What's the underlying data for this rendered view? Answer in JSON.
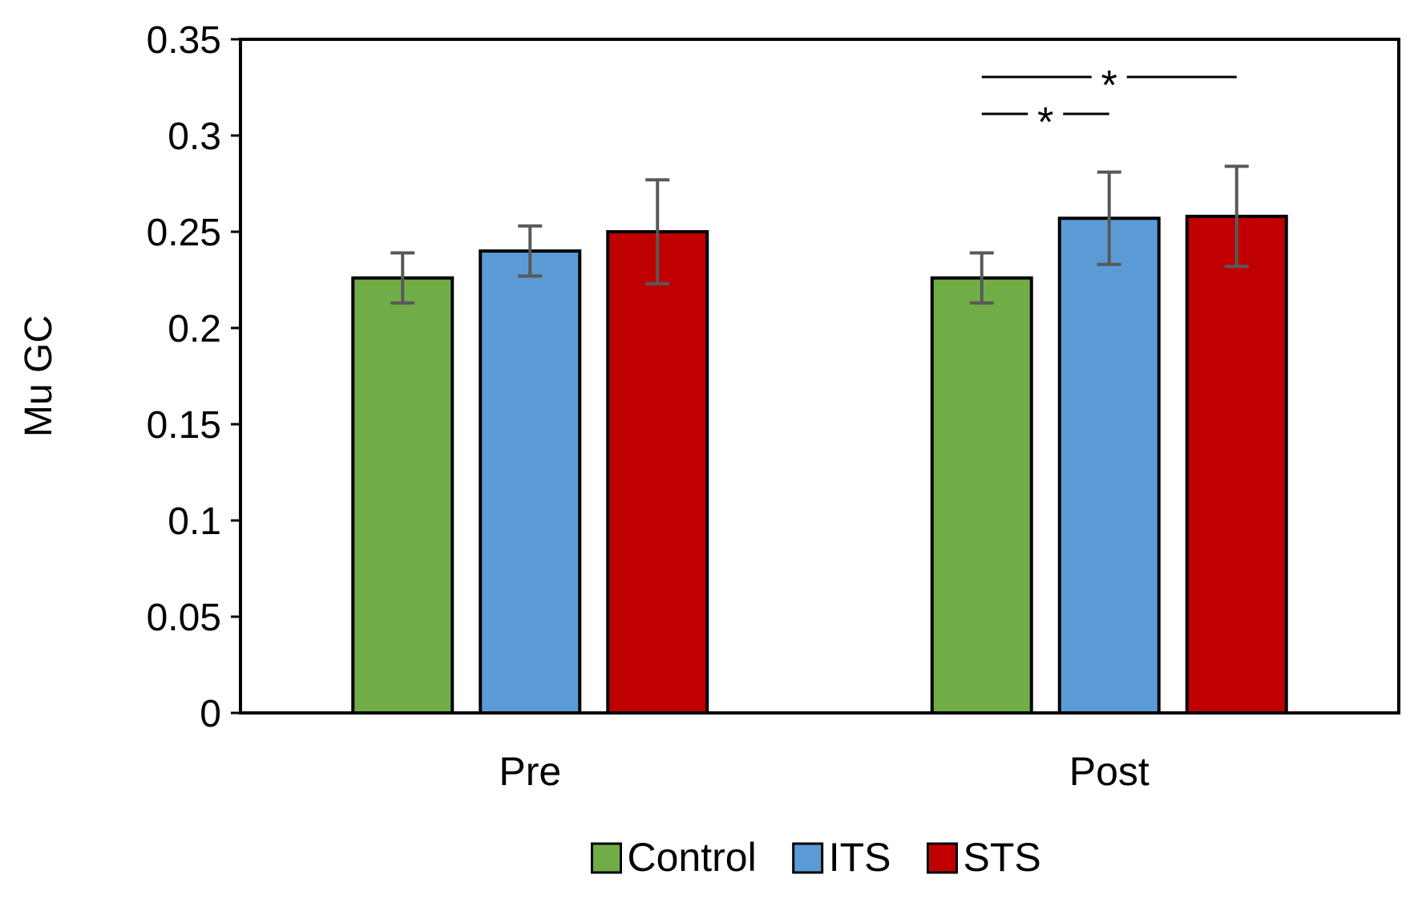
{
  "chart_data": {
    "type": "bar",
    "title": "",
    "xlabel": "",
    "ylabel": "Mu GC",
    "ylim": [
      0,
      0.35
    ],
    "yticks": [
      0,
      0.05,
      0.1,
      0.15,
      0.2,
      0.25,
      0.3,
      0.35
    ],
    "ytick_labels": [
      "0",
      "0.05",
      "0.1",
      "0.15",
      "0.2",
      "0.25",
      "0.3",
      "0.35"
    ],
    "categories": [
      "Pre",
      "Post"
    ],
    "series": [
      {
        "name": "Control",
        "color": "#70ad47",
        "values": [
          0.226,
          0.226
        ],
        "errors": [
          0.013,
          0.013
        ]
      },
      {
        "name": "ITS",
        "color": "#5b9bd5",
        "values": [
          0.24,
          0.257
        ],
        "errors": [
          0.013,
          0.024
        ]
      },
      {
        "name": "STS",
        "color": "#c00000",
        "values": [
          0.25,
          0.258
        ],
        "errors": [
          0.027,
          0.026
        ]
      }
    ],
    "legend_position": "bottom",
    "significance": [
      {
        "category": "Post",
        "from": "Control",
        "to": "STS",
        "label": "*"
      },
      {
        "category": "Post",
        "from": "Control",
        "to": "ITS",
        "label": "*"
      }
    ]
  }
}
